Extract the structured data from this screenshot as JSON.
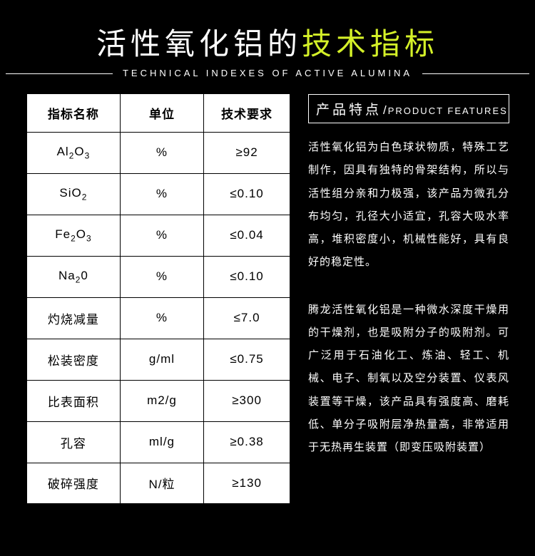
{
  "header": {
    "title_part1": "活性氧化铝的",
    "title_part2": "技术指标",
    "subtitle": "TECHNICAL INDEXES OF ACTIVE ALUMINA"
  },
  "colors": {
    "background": "#000000",
    "text_white": "#ffffff",
    "accent": "#d4f028",
    "table_bg": "#ffffff",
    "table_border": "#000000"
  },
  "table": {
    "headers": [
      "指标名称",
      "单位",
      "技术要求"
    ],
    "rows": [
      {
        "name_html": "Al<sub>2</sub>O<sub>3</sub>",
        "unit": "%",
        "req": "≥92"
      },
      {
        "name_html": "SiO<sub>2</sub>",
        "unit": "%",
        "req": "≤0.10"
      },
      {
        "name_html": "Fe<sub>2</sub>O<sub>3</sub>",
        "unit": "%",
        "req": "≤0.04"
      },
      {
        "name_html": "Na<sub>2</sub>0",
        "unit": "%",
        "req": "≤0.10"
      },
      {
        "name_html": "灼烧减量",
        "unit": "%",
        "req": "≤7.0"
      },
      {
        "name_html": "松装密度",
        "unit": "g/ml",
        "req": "≤0.75"
      },
      {
        "name_html": "比表面积",
        "unit": "m2/g",
        "req": "≥300"
      },
      {
        "name_html": "孔容",
        "unit": "ml/g",
        "req": "≥0.38"
      },
      {
        "name_html": "破碎强度",
        "unit": "N/粒",
        "req": "≥130"
      }
    ]
  },
  "features": {
    "heading_zh": "产品特点",
    "heading_en": "PRODUCT FEATURES",
    "para1": "活性氧化铝为白色球状物质，特殊工艺制作，因具有独特的骨架结构，所以与活性组分亲和力极强，该产品为微孔分布均匀，孔径大小适宜，孔容大吸水率高，堆积密度小，机械性能好，具有良好的稳定性。",
    "para2": "腾龙活性氧化铝是一种微水深度干燥用的干燥剂，也是吸附分子的吸附剂。可广泛用于石油化工、炼油、轻工、机械、电子、制氧以及空分装置、仪表风装置等干燥，该产品具有强度高、磨耗低、单分子吸附层净热量高，非常适用于无热再生装置（即变压吸附装置）"
  }
}
